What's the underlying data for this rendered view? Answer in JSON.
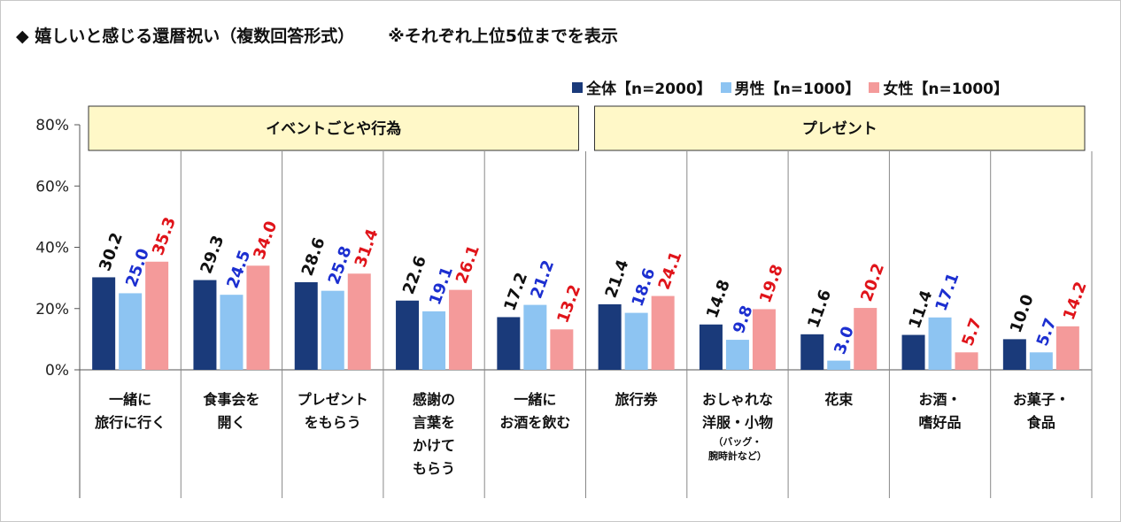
{
  "title": "◆ 嬉しいと感じる還暦祝い（複数回答形式）",
  "note": "※それぞれ上位5位までを表示",
  "colors": {
    "overall": "#1a3a7a",
    "male": "#8dc4f2",
    "female": "#f49a9a",
    "band": "#fff8c8",
    "male_label": "#1c2fd0",
    "female_label": "#e0141a"
  },
  "chart_data": {
    "type": "bar",
    "ylim": [
      0,
      80
    ],
    "yticks": [
      "0%",
      "20%",
      "40%",
      "60%",
      "80%"
    ],
    "groups": [
      {
        "label": "イベントごとや行為",
        "start": 0,
        "end": 4
      },
      {
        "label": "プレゼント",
        "start": 5,
        "end": 9
      }
    ],
    "categories": [
      {
        "lines": [
          "一緒に",
          "旅行に行く"
        ],
        "note": []
      },
      {
        "lines": [
          "食事会を",
          "開く"
        ],
        "note": []
      },
      {
        "lines": [
          "プレゼント",
          "をもらう"
        ],
        "note": []
      },
      {
        "lines": [
          "感謝の",
          "言葉を",
          "かけて",
          "もらう"
        ],
        "note": []
      },
      {
        "lines": [
          "一緒に",
          "お酒を飲む"
        ],
        "note": []
      },
      {
        "lines": [
          "旅行券"
        ],
        "note": []
      },
      {
        "lines": [
          "おしゃれな",
          "洋服・小物"
        ],
        "note": [
          "（バッグ・",
          "腕時計など）"
        ]
      },
      {
        "lines": [
          "花束"
        ],
        "note": []
      },
      {
        "lines": [
          "お酒・",
          "嗜好品"
        ],
        "note": []
      },
      {
        "lines": [
          "お菓子・",
          "食品"
        ],
        "note": []
      }
    ],
    "series": [
      {
        "name": "全体【n=2000】",
        "key": "overall",
        "values": [
          30.2,
          29.3,
          28.6,
          22.6,
          17.2,
          21.4,
          14.8,
          11.6,
          11.4,
          10.0
        ]
      },
      {
        "name": "男性【n=1000】",
        "key": "male",
        "values": [
          25.0,
          24.5,
          25.8,
          19.1,
          21.2,
          18.6,
          9.8,
          3.0,
          17.1,
          5.7
        ]
      },
      {
        "name": "女性【n=1000】",
        "key": "female",
        "values": [
          35.3,
          34.0,
          31.4,
          26.1,
          13.2,
          24.1,
          19.8,
          20.2,
          5.7,
          14.2
        ]
      }
    ]
  }
}
